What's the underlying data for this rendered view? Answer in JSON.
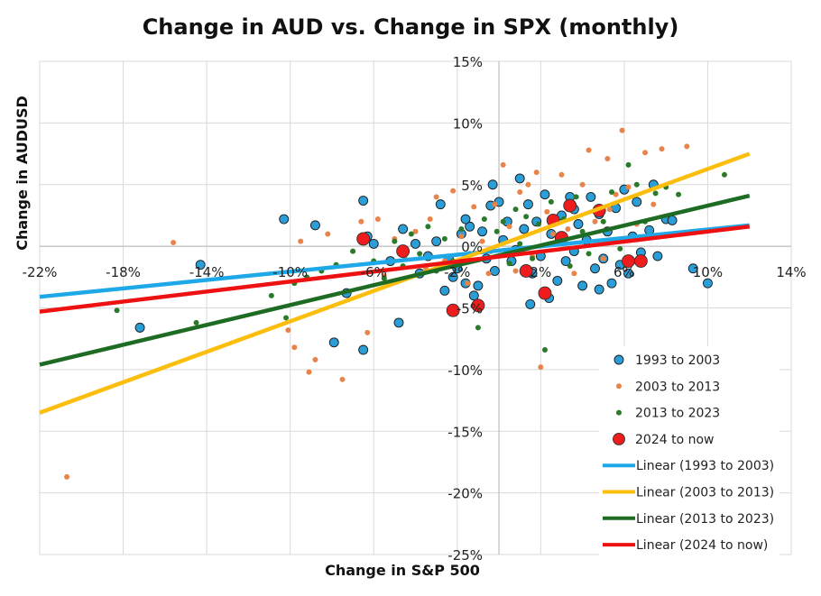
{
  "chart_data": {
    "type": "scatter",
    "title": "Change in AUD vs. Change in SPX (monthly)",
    "xlabel": "Change in S&P 500",
    "ylabel": "Change in AUDUSD",
    "xlim": [
      -0.22,
      0.14
    ],
    "ylim": [
      -0.25,
      0.15
    ],
    "x_ticks": [
      -0.22,
      -0.18,
      -0.14,
      -0.1,
      -0.06,
      -0.02,
      0.02,
      0.06,
      0.1,
      0.14
    ],
    "x_tick_labels": [
      "-22%",
      "-18%",
      "-14%",
      "-10%",
      "-6%",
      "-2%",
      "2%",
      "6%",
      "10%",
      "14%"
    ],
    "y_ticks": [
      0.15,
      0.1,
      0.05,
      0.0,
      -0.05,
      -0.1,
      -0.15,
      -0.2,
      -0.25
    ],
    "y_tick_labels": [
      "15%",
      "10%",
      "5%",
      "0%",
      "-5%",
      "-10%",
      "-15%",
      "-20%",
      "-25%"
    ],
    "grid": true,
    "legend_position": "bottom-right",
    "colors": {
      "s1993": "#2b9ed8",
      "s2003": "#e8844a",
      "s2013": "#2a7a2a",
      "s2024": "#ee1c1c",
      "fit1993": "#1fa8e8",
      "fit2003": "#fcbe0c",
      "fit2013": "#1e6b24",
      "fit2024": "#ee1111"
    },
    "series": [
      {
        "name": "1993 to 2003",
        "marker": "circle-large",
        "color_key": "s1993",
        "points": [
          [
            -0.172,
            -0.066
          ],
          [
            -0.143,
            -0.015
          ],
          [
            -0.103,
            0.022
          ],
          [
            -0.088,
            0.017
          ],
          [
            -0.079,
            -0.078
          ],
          [
            -0.073,
            -0.038
          ],
          [
            -0.065,
            0.037
          ],
          [
            -0.063,
            0.008
          ],
          [
            -0.065,
            -0.084
          ],
          [
            -0.06,
            0.002
          ],
          [
            -0.052,
            -0.012
          ],
          [
            -0.048,
            -0.062
          ],
          [
            -0.046,
            0.014
          ],
          [
            -0.04,
            0.002
          ],
          [
            -0.038,
            -0.022
          ],
          [
            -0.034,
            -0.008
          ],
          [
            -0.03,
            0.004
          ],
          [
            -0.028,
            0.034
          ],
          [
            -0.026,
            -0.036
          ],
          [
            -0.024,
            -0.01
          ],
          [
            -0.022,
            -0.025
          ],
          [
            -0.02,
            -0.018
          ],
          [
            -0.018,
            0.01
          ],
          [
            -0.016,
            -0.03
          ],
          [
            -0.014,
            0.016
          ],
          [
            -0.012,
            -0.04
          ],
          [
            -0.01,
            -0.032
          ],
          [
            -0.008,
            0.012
          ],
          [
            -0.006,
            -0.01
          ],
          [
            -0.004,
            0.033
          ],
          [
            -0.003,
            0.05
          ],
          [
            -0.002,
            -0.02
          ],
          [
            0.0,
            0.036
          ],
          [
            0.002,
            0.005
          ],
          [
            0.004,
            0.02
          ],
          [
            0.006,
            -0.012
          ],
          [
            0.008,
            -0.003
          ],
          [
            0.01,
            0.055
          ],
          [
            0.012,
            0.014
          ],
          [
            0.014,
            0.034
          ],
          [
            0.015,
            -0.047
          ],
          [
            0.016,
            -0.022
          ],
          [
            0.018,
            0.02
          ],
          [
            0.02,
            -0.008
          ],
          [
            0.022,
            0.042
          ],
          [
            0.024,
            -0.042
          ],
          [
            0.025,
            0.01
          ],
          [
            0.028,
            -0.028
          ],
          [
            0.03,
            0.025
          ],
          [
            0.032,
            -0.012
          ],
          [
            0.034,
            0.04
          ],
          [
            0.036,
            -0.004
          ],
          [
            0.038,
            0.018
          ],
          [
            0.04,
            -0.032
          ],
          [
            0.042,
            0.005
          ],
          [
            0.044,
            0.04
          ],
          [
            0.046,
            -0.018
          ],
          [
            0.048,
            0.026
          ],
          [
            0.05,
            -0.01
          ],
          [
            0.052,
            0.012
          ],
          [
            0.054,
            -0.03
          ],
          [
            0.056,
            0.031
          ],
          [
            0.058,
            -0.015
          ],
          [
            0.06,
            0.046
          ],
          [
            0.062,
            -0.022
          ],
          [
            0.064,
            0.008
          ],
          [
            0.066,
            0.036
          ],
          [
            0.068,
            -0.005
          ],
          [
            0.072,
            0.013
          ],
          [
            0.074,
            0.05
          ],
          [
            0.076,
            -0.008
          ],
          [
            0.08,
            0.022
          ],
          [
            0.083,
            0.021
          ],
          [
            0.093,
            -0.018
          ],
          [
            0.1,
            -0.03
          ],
          [
            -0.016,
            0.022
          ],
          [
            0.036,
            0.03
          ],
          [
            0.048,
            -0.035
          ]
        ]
      },
      {
        "name": "2003 to 2013",
        "marker": "dot",
        "color_key": "s2003",
        "points": [
          [
            -0.207,
            -0.187
          ],
          [
            -0.156,
            0.003
          ],
          [
            -0.101,
            -0.068
          ],
          [
            -0.098,
            -0.082
          ],
          [
            -0.095,
            0.004
          ],
          [
            -0.091,
            -0.102
          ],
          [
            -0.088,
            -0.092
          ],
          [
            -0.082,
            0.01
          ],
          [
            -0.075,
            -0.108
          ],
          [
            -0.066,
            0.02
          ],
          [
            -0.063,
            -0.07
          ],
          [
            -0.058,
            0.022
          ],
          [
            -0.055,
            -0.024
          ],
          [
            -0.05,
            0.006
          ],
          [
            -0.045,
            -0.01
          ],
          [
            -0.04,
            0.012
          ],
          [
            -0.035,
            -0.018
          ],
          [
            -0.03,
            0.04
          ],
          [
            -0.026,
            -0.012
          ],
          [
            -0.022,
            0.045
          ],
          [
            -0.018,
            0.008
          ],
          [
            -0.015,
            -0.03
          ],
          [
            -0.012,
            0.032
          ],
          [
            -0.008,
            0.004
          ],
          [
            -0.005,
            -0.022
          ],
          [
            -0.002,
            0.034
          ],
          [
            0.002,
            0.066
          ],
          [
            0.005,
            0.016
          ],
          [
            0.008,
            -0.02
          ],
          [
            0.01,
            0.044
          ],
          [
            0.014,
            0.05
          ],
          [
            0.016,
            -0.008
          ],
          [
            0.018,
            0.06
          ],
          [
            0.02,
            -0.098
          ],
          [
            0.023,
            0.028
          ],
          [
            0.026,
            0.01
          ],
          [
            0.03,
            0.058
          ],
          [
            0.033,
            0.014
          ],
          [
            0.036,
            -0.022
          ],
          [
            0.04,
            0.05
          ],
          [
            0.043,
            0.078
          ],
          [
            0.046,
            0.02
          ],
          [
            0.05,
            -0.01
          ],
          [
            0.053,
            0.03
          ],
          [
            0.056,
            0.042
          ],
          [
            0.059,
            0.094
          ],
          [
            0.062,
            0.048
          ],
          [
            0.066,
            0.018
          ],
          [
            0.07,
            0.076
          ],
          [
            0.074,
            0.034
          ],
          [
            0.078,
            0.079
          ],
          [
            0.09,
            0.081
          ],
          [
            0.052,
            0.071
          ],
          [
            -0.033,
            0.022
          ]
        ]
      },
      {
        "name": "2013 to 2023",
        "marker": "dot",
        "color_key": "s2013",
        "points": [
          [
            -0.183,
            -0.052
          ],
          [
            -0.145,
            -0.062
          ],
          [
            -0.109,
            -0.04
          ],
          [
            -0.102,
            -0.058
          ],
          [
            -0.098,
            -0.03
          ],
          [
            -0.092,
            -0.025
          ],
          [
            -0.085,
            -0.02
          ],
          [
            -0.078,
            -0.015
          ],
          [
            -0.07,
            -0.004
          ],
          [
            -0.064,
            0.005
          ],
          [
            -0.06,
            -0.012
          ],
          [
            -0.055,
            -0.026
          ],
          [
            -0.05,
            0.004
          ],
          [
            -0.046,
            -0.016
          ],
          [
            -0.042,
            0.01
          ],
          [
            -0.038,
            -0.006
          ],
          [
            -0.034,
            0.016
          ],
          [
            -0.03,
            -0.02
          ],
          [
            -0.026,
            0.006
          ],
          [
            -0.022,
            -0.012
          ],
          [
            -0.018,
            0.014
          ],
          [
            -0.014,
            -0.006
          ],
          [
            -0.01,
            -0.066
          ],
          [
            -0.007,
            0.022
          ],
          [
            -0.004,
            -0.004
          ],
          [
            -0.001,
            0.012
          ],
          [
            0.002,
            0.02
          ],
          [
            0.005,
            -0.014
          ],
          [
            0.008,
            0.03
          ],
          [
            0.01,
            0.002
          ],
          [
            0.013,
            0.024
          ],
          [
            0.016,
            -0.01
          ],
          [
            0.019,
            0.018
          ],
          [
            0.022,
            -0.084
          ],
          [
            0.025,
            0.036
          ],
          [
            0.028,
            0.006
          ],
          [
            0.031,
            0.022
          ],
          [
            0.034,
            -0.016
          ],
          [
            0.037,
            0.04
          ],
          [
            0.04,
            0.012
          ],
          [
            0.043,
            -0.006
          ],
          [
            0.046,
            0.028
          ],
          [
            0.05,
            0.02
          ],
          [
            0.054,
            0.044
          ],
          [
            0.058,
            -0.002
          ],
          [
            0.062,
            0.066
          ],
          [
            0.066,
            0.05
          ],
          [
            0.07,
            0.02
          ],
          [
            0.075,
            0.043
          ],
          [
            0.08,
            0.048
          ],
          [
            0.086,
            0.042
          ],
          [
            0.108,
            0.058
          ]
        ]
      },
      {
        "name": "2024 to now",
        "marker": "circle-red",
        "color_key": "s2024",
        "points": [
          [
            -0.065,
            0.006
          ],
          [
            -0.046,
            -0.004
          ],
          [
            -0.022,
            -0.052
          ],
          [
            -0.01,
            -0.048
          ],
          [
            0.013,
            -0.02
          ],
          [
            0.022,
            -0.038
          ],
          [
            0.026,
            0.021
          ],
          [
            0.03,
            0.007
          ],
          [
            0.034,
            0.033
          ],
          [
            0.048,
            0.029
          ],
          [
            0.062,
            -0.012
          ],
          [
            0.068,
            -0.012
          ]
        ]
      }
    ],
    "trendlines": [
      {
        "name": "Linear (1993 to 2003)",
        "color_key": "fit1993",
        "x": [
          -0.22,
          0.12
        ],
        "y": [
          -0.041,
          0.017
        ]
      },
      {
        "name": "Linear (2003 to 2013)",
        "color_key": "fit2003",
        "x": [
          -0.22,
          0.12
        ],
        "y": [
          -0.135,
          0.075
        ]
      },
      {
        "name": "Linear (2013 to 2023)",
        "color_key": "fit2013",
        "x": [
          -0.22,
          0.12
        ],
        "y": [
          -0.096,
          0.041
        ]
      },
      {
        "name": "Linear (2024 to now)",
        "color_key": "fit2024",
        "x": [
          -0.22,
          0.12
        ],
        "y": [
          -0.053,
          0.016
        ]
      }
    ]
  }
}
